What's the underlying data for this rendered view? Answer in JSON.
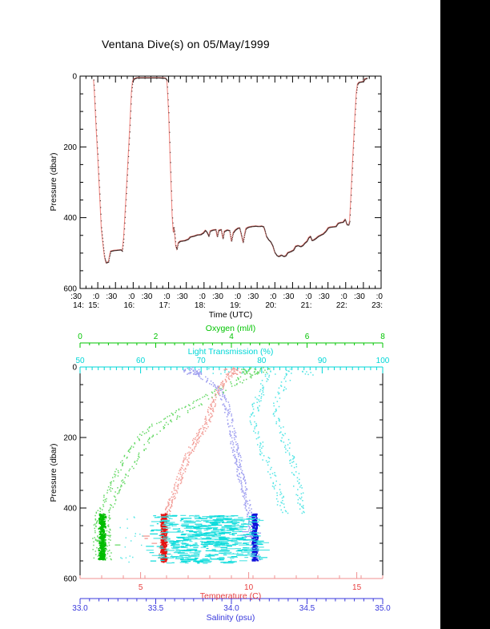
{
  "palette": {
    "background": "#ffffff",
    "side_strip": "#000000",
    "frame": "#000000"
  },
  "chart_data": [
    {
      "type": "line",
      "title": "Ventana Dive(s) on 05/May/1999",
      "xlabel": "Time (UTC)",
      "ylabel": "Pressure (dbar)",
      "x_range_hours": [
        14.5,
        23.0
      ],
      "ylim": [
        0,
        600
      ],
      "y_ticks": [
        {
          "v": 0,
          "label": "0"
        },
        {
          "v": 200,
          "label": "200"
        },
        {
          "v": 400,
          "label": "400"
        },
        {
          "v": 600,
          "label": "600"
        }
      ],
      "x_minute_ticks": [
        {
          "t": 14.5,
          "label": ":30"
        },
        {
          "t": 15.0,
          "label": ":0"
        },
        {
          "t": 15.5,
          "label": ":30"
        },
        {
          "t": 16.0,
          "label": ":0"
        },
        {
          "t": 16.5,
          "label": ":30"
        },
        {
          "t": 17.0,
          "label": ":0"
        },
        {
          "t": 17.5,
          "label": ":30"
        },
        {
          "t": 18.0,
          "label": ":0"
        },
        {
          "t": 18.5,
          "label": ":30"
        },
        {
          "t": 19.0,
          "label": ":0"
        },
        {
          "t": 19.5,
          "label": ":30"
        },
        {
          "t": 20.0,
          "label": ":0"
        },
        {
          "t": 20.5,
          "label": ":30"
        },
        {
          "t": 21.0,
          "label": ":0"
        },
        {
          "t": 21.5,
          "label": ":30"
        },
        {
          "t": 22.0,
          "label": ":0"
        },
        {
          "t": 22.5,
          "label": ":30"
        },
        {
          "t": 23.0,
          "label": ":0"
        }
      ],
      "x_hour_labels": [
        {
          "t": 14.5,
          "label": "14:"
        },
        {
          "t": 15.0,
          "label": "15:"
        },
        {
          "t": 16.0,
          "label": "16:"
        },
        {
          "t": 17.0,
          "label": "17:"
        },
        {
          "t": 18.0,
          "label": "18:"
        },
        {
          "t": 19.0,
          "label": "19:"
        },
        {
          "t": 20.0,
          "label": "20:"
        },
        {
          "t": 21.0,
          "label": "21:"
        },
        {
          "t": 22.0,
          "label": "22:"
        },
        {
          "t": 23.0,
          "label": "23:"
        }
      ],
      "line_color": "#f28b85",
      "dot_color": "#3b2423",
      "profile": [
        [
          14.88,
          10
        ],
        [
          14.9,
          40
        ],
        [
          14.95,
          140
        ],
        [
          15.0,
          230
        ],
        [
          15.05,
          330
        ],
        [
          15.1,
          430
        ],
        [
          15.15,
          480
        ],
        [
          15.19,
          512
        ],
        [
          15.23,
          527
        ],
        [
          15.3,
          524
        ],
        [
          15.33,
          507
        ],
        [
          15.36,
          494
        ],
        [
          15.45,
          492
        ],
        [
          15.55,
          491
        ],
        [
          15.65,
          490
        ],
        [
          15.69,
          494
        ],
        [
          15.73,
          455
        ],
        [
          15.78,
          370
        ],
        [
          15.84,
          260
        ],
        [
          15.9,
          150
        ],
        [
          15.95,
          45
        ],
        [
          15.98,
          14
        ],
        [
          16.02,
          7
        ],
        [
          16.1,
          4
        ],
        [
          16.3,
          4
        ],
        [
          16.5,
          4
        ],
        [
          16.7,
          4
        ],
        [
          16.9,
          5
        ],
        [
          16.95,
          10
        ],
        [
          17.0,
          105
        ],
        [
          17.05,
          255
        ],
        [
          17.1,
          395
        ],
        [
          17.13,
          440
        ],
        [
          17.15,
          427
        ],
        [
          17.17,
          446
        ],
        [
          17.2,
          480
        ],
        [
          17.23,
          489
        ],
        [
          17.27,
          470
        ],
        [
          17.32,
          466
        ],
        [
          17.45,
          464
        ],
        [
          17.55,
          460
        ],
        [
          17.6,
          454
        ],
        [
          17.72,
          451
        ],
        [
          17.8,
          448
        ],
        [
          17.9,
          447
        ],
        [
          17.98,
          442
        ],
        [
          18.03,
          435
        ],
        [
          18.08,
          441
        ],
        [
          18.13,
          452
        ],
        [
          18.17,
          437
        ],
        [
          18.25,
          434
        ],
        [
          18.33,
          433
        ],
        [
          18.37,
          454
        ],
        [
          18.41,
          435
        ],
        [
          18.48,
          433
        ],
        [
          18.53,
          459
        ],
        [
          18.57,
          438
        ],
        [
          18.65,
          434
        ],
        [
          18.72,
          436
        ],
        [
          18.77,
          467
        ],
        [
          18.82,
          442
        ],
        [
          18.88,
          434
        ],
        [
          18.95,
          429
        ],
        [
          19.0,
          428
        ],
        [
          19.05,
          448
        ],
        [
          19.1,
          470
        ],
        [
          19.14,
          447
        ],
        [
          19.18,
          430
        ],
        [
          19.25,
          426
        ],
        [
          19.35,
          424
        ],
        [
          19.45,
          423
        ],
        [
          19.55,
          424
        ],
        [
          19.62,
          423
        ],
        [
          19.68,
          425
        ],
        [
          19.72,
          438
        ],
        [
          19.76,
          453
        ],
        [
          19.82,
          462
        ],
        [
          19.88,
          468
        ],
        [
          19.94,
          480
        ],
        [
          19.99,
          497
        ],
        [
          20.05,
          506
        ],
        [
          20.1,
          509
        ],
        [
          20.18,
          505
        ],
        [
          20.25,
          509
        ],
        [
          20.3,
          507
        ],
        [
          20.36,
          498
        ],
        [
          20.44,
          495
        ],
        [
          20.52,
          491
        ],
        [
          20.58,
          480
        ],
        [
          20.65,
          478
        ],
        [
          20.72,
          481
        ],
        [
          20.78,
          478
        ],
        [
          20.85,
          470
        ],
        [
          20.9,
          466
        ],
        [
          20.95,
          456
        ],
        [
          21.0,
          452
        ],
        [
          21.04,
          464
        ],
        [
          21.09,
          462
        ],
        [
          21.15,
          458
        ],
        [
          21.22,
          452
        ],
        [
          21.3,
          448
        ],
        [
          21.36,
          445
        ],
        [
          21.44,
          437
        ],
        [
          21.5,
          428
        ],
        [
          21.56,
          426
        ],
        [
          21.65,
          425
        ],
        [
          21.72,
          424
        ],
        [
          21.78,
          415
        ],
        [
          21.85,
          413
        ],
        [
          21.92,
          412
        ],
        [
          21.98,
          404
        ],
        [
          22.03,
          419
        ],
        [
          22.08,
          420
        ],
        [
          22.11,
          409
        ],
        [
          22.14,
          350
        ],
        [
          22.18,
          270
        ],
        [
          22.22,
          190
        ],
        [
          22.26,
          110
        ],
        [
          22.3,
          45
        ],
        [
          22.33,
          22
        ],
        [
          22.37,
          17
        ],
        [
          22.42,
          16
        ],
        [
          22.47,
          15
        ],
        [
          22.5,
          14
        ],
        [
          22.53,
          8
        ],
        [
          22.58,
          6
        ],
        [
          22.6,
          5
        ]
      ]
    },
    {
      "type": "scatter",
      "ylabel": "Pressure (dbar)",
      "ylim": [
        0,
        600
      ],
      "y_ticks": [
        {
          "v": 0,
          "label": "0"
        },
        {
          "v": 200,
          "label": "200"
        },
        {
          "v": 400,
          "label": "400"
        },
        {
          "v": 600,
          "label": "600"
        }
      ],
      "axes": {
        "oxygen": {
          "label": "Oxygen (ml/l)",
          "color": "#00c400",
          "line_color": "#00c400",
          "range": [
            0,
            8
          ],
          "minor_step": 0.25,
          "majors": [
            {
              "v": 0,
              "label": "0"
            },
            {
              "v": 2,
              "label": "2"
            },
            {
              "v": 4,
              "label": "4"
            },
            {
              "v": 6,
              "label": "6"
            },
            {
              "v": 8,
              "label": "8"
            }
          ]
        },
        "light": {
          "label": "Light Transmission (%)",
          "color": "#00d7d7",
          "line_color": "#00d7d7",
          "range": [
            50,
            100
          ],
          "minor_step": 1,
          "majors": [
            {
              "v": 50,
              "label": "50"
            },
            {
              "v": 60,
              "label": "60"
            },
            {
              "v": 70,
              "label": "70"
            },
            {
              "v": 80,
              "label": "80"
            },
            {
              "v": 90,
              "label": "90"
            },
            {
              "v": 100,
              "label": "100"
            }
          ]
        },
        "temperature": {
          "label": "Temperature (C)",
          "color": "#e84040",
          "line_color": "#f09090",
          "range": [
            2.2,
            16.2
          ],
          "minor_step": 1,
          "majors": [
            {
              "v": 5,
              "label": "5"
            },
            {
              "v": 10,
              "label": "10"
            },
            {
              "v": 15,
              "label": "15"
            }
          ]
        },
        "salinity": {
          "label": "Salinity (psu)",
          "color": "#3939dc",
          "line_color": "#3939dc",
          "range": [
            33.0,
            35.0
          ],
          "minor_step": 0.0625,
          "majors": [
            {
              "v": 33.0,
              "label": "33.0"
            },
            {
              "v": 33.5,
              "label": "33.5"
            },
            {
              "v": 34.0,
              "label": "34.0"
            },
            {
              "v": 34.5,
              "label": "34.5"
            },
            {
              "v": 35.0,
              "label": "35.0"
            }
          ]
        }
      },
      "series": [
        {
          "name": "oxygen",
          "axis": "oxygen",
          "sparse_color": "#66d966",
          "dense_color": "#00bd00",
          "profile_anchors": [
            [
              0,
              4.6
            ],
            [
              20,
              4.45
            ],
            [
              50,
              3.95
            ],
            [
              80,
              3.45
            ],
            [
              120,
              2.8
            ],
            [
              160,
              2.15
            ],
            [
              200,
              1.72
            ],
            [
              250,
              1.35
            ],
            [
              300,
              1.05
            ],
            [
              350,
              0.85
            ],
            [
              400,
              0.68
            ],
            [
              420,
              0.62
            ],
            [
              545,
              0.55
            ]
          ],
          "branch_offset": 0.2,
          "jitter": 0.07,
          "surface_pressure": [
            2,
            20
          ],
          "surface_spread": [
            4.25,
            5.0
          ],
          "bottom_cluster": {
            "pressure_range": [
              415,
              545
            ],
            "center": 0.57,
            "spread": 0.1
          }
        },
        {
          "name": "temperature",
          "axis": "temperature",
          "sparse_color": "#f29b95",
          "dense_color": "#e41312",
          "profile_anchors": [
            [
              0,
              9.35
            ],
            [
              20,
              9.1
            ],
            [
              64,
              8.6
            ],
            [
              100,
              8.35
            ],
            [
              160,
              8.05
            ],
            [
              200,
              7.6
            ],
            [
              250,
              7.15
            ],
            [
              300,
              6.85
            ],
            [
              350,
              6.55
            ],
            [
              400,
              6.3
            ],
            [
              430,
              6.15
            ],
            [
              550,
              5.95
            ]
          ],
          "branch_offset": 0.12,
          "jitter": 0.07,
          "surface_pressure": [
            2,
            20
          ],
          "surface_spread": [
            8.8,
            9.7
          ],
          "bottom_cluster": {
            "pressure_range": [
              415,
              552
            ],
            "center": 6.05,
            "spread": 0.17
          }
        },
        {
          "name": "salinity",
          "axis": "salinity",
          "sparse_color": "#9c9cef",
          "dense_color": "#1212d9",
          "profile_anchors": [
            [
              0,
              33.73
            ],
            [
              30,
              33.81
            ],
            [
              64,
              33.92
            ],
            [
              100,
              33.96
            ],
            [
              150,
              33.99
            ],
            [
              200,
              34.01
            ],
            [
              250,
              34.03
            ],
            [
              300,
              34.05
            ],
            [
              350,
              34.08
            ],
            [
              400,
              34.11
            ],
            [
              430,
              34.13
            ],
            [
              545,
              34.16
            ]
          ],
          "branch_offset": 0.018,
          "jitter": 0.01,
          "surface_pressure": [
            2,
            20
          ],
          "surface_spread": [
            33.68,
            33.8
          ],
          "bottom_cluster": {
            "pressure_range": [
              415,
              548
            ],
            "center": 34.15,
            "spread": 0.022
          }
        },
        {
          "name": "light",
          "axis": "light",
          "sparse_color": "#52e5e5",
          "dense_color": "#0fdcdc",
          "profile_anchors": [
            [
              10,
              82
            ],
            [
              60,
              81.5
            ],
            [
              120,
              81
            ],
            [
              180,
              81.5
            ],
            [
              240,
              82
            ],
            [
              300,
              83
            ],
            [
              340,
              83.8
            ],
            [
              385,
              85
            ],
            [
              415,
              86
            ]
          ],
          "branch_offset": 2.6,
          "jitter": 0.7,
          "surface_pressure": [
            2,
            22
          ],
          "surface_spread": [
            71,
            89
          ],
          "deep_cloud": {
            "pressure_range": [
              420,
              556
            ],
            "value_range": [
              56.5,
              79.5
            ],
            "center": 70.5
          }
        }
      ]
    }
  ]
}
